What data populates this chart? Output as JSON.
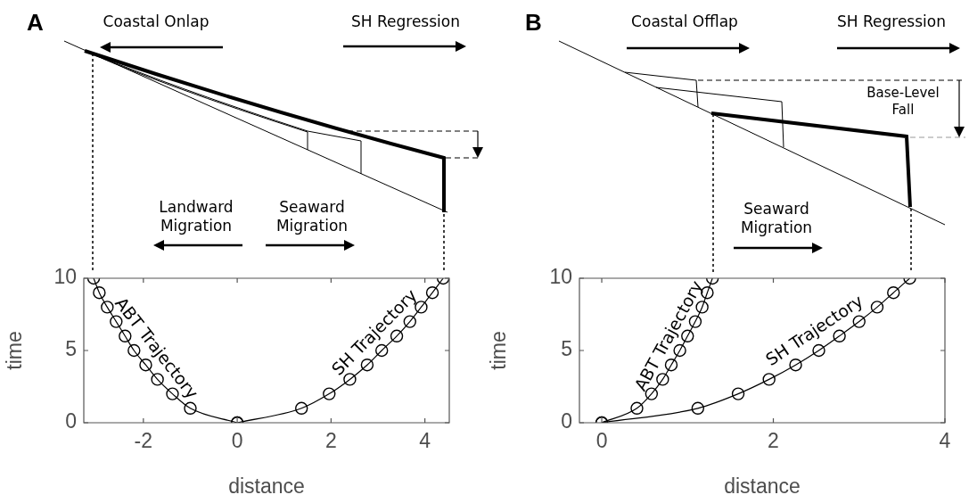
{
  "chart_data": [
    {
      "type": "line",
      "title": "A",
      "xlabel": "distance",
      "ylabel": "time",
      "xlim": [
        -3.27,
        4.52
      ],
      "xticks": [
        -2,
        0,
        2,
        4
      ],
      "ylim": [
        0,
        10
      ],
      "yticks": [
        0,
        5,
        10
      ],
      "grid": false,
      "legend": false,
      "marker": "circle",
      "line_style": "solid",
      "series": [
        {
          "name": "ABT Trajectory",
          "color": "#000000",
          "x": [
            -3.06,
            -2.94,
            -2.77,
            -2.58,
            -2.39,
            -2.2,
            -1.95,
            -1.7,
            -1.38,
            -1.0,
            0
          ],
          "values": [
            10,
            9,
            8,
            7,
            6,
            5,
            4,
            3,
            2,
            1,
            0
          ]
        },
        {
          "name": "SH Trajectory",
          "color": "#000000",
          "x": [
            0,
            1.37,
            1.96,
            2.4,
            2.77,
            3.08,
            3.4,
            3.68,
            3.92,
            4.16,
            4.39
          ],
          "values": [
            0,
            1,
            2,
            3,
            4,
            5,
            6,
            7,
            8,
            9,
            10
          ]
        }
      ],
      "annotations": [
        "Coastal Onlap",
        "SH Regression",
        "Landward Migration",
        "Seaward Migration"
      ]
    },
    {
      "type": "line",
      "title": "B",
      "xlabel": "distance",
      "ylabel": "time",
      "xlim": [
        -0.26,
        4
      ],
      "xticks": [
        0,
        2,
        4
      ],
      "ylim": [
        0,
        10
      ],
      "yticks": [
        0,
        5,
        10
      ],
      "grid": false,
      "legend": false,
      "marker": "circle",
      "line_style": "solid",
      "series": [
        {
          "name": "ABT Trajectory",
          "color": "#000000",
          "x": [
            0,
            0.41,
            0.58,
            0.71,
            0.81,
            0.91,
            1.0,
            1.09,
            1.17,
            1.23,
            1.29
          ],
          "values": [
            0,
            1,
            2,
            3,
            4,
            5,
            6,
            7,
            8,
            9,
            10
          ]
        },
        {
          "name": "SH Trajectory",
          "color": "#000000",
          "x": [
            0,
            1.12,
            1.59,
            1.95,
            2.26,
            2.53,
            2.77,
            3.0,
            3.21,
            3.4,
            3.59
          ],
          "values": [
            0,
            1,
            2,
            3,
            4,
            5,
            6,
            7,
            8,
            9,
            10
          ]
        }
      ],
      "annotations": [
        "Coastal Offlap",
        "SH Regression",
        "Seaward Migration",
        "Base-Level Fall"
      ]
    }
  ]
}
